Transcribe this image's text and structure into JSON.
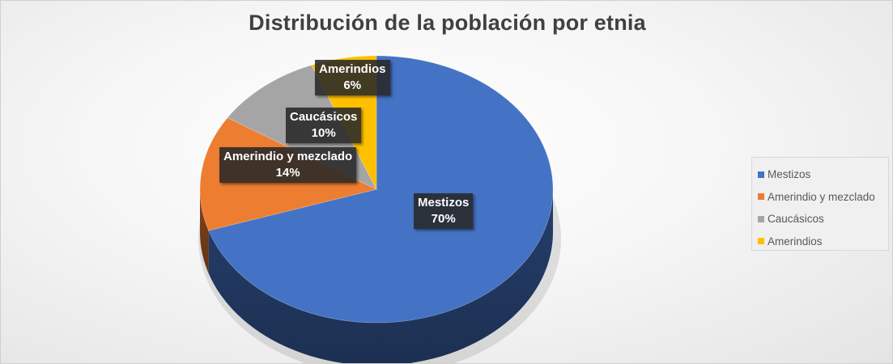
{
  "chart_data": {
    "type": "pie",
    "title": "Distribución de la población por etnia",
    "categories": [
      "Mestizos",
      "Amerindio y mezclado",
      "Caucásicos",
      "Amerindios"
    ],
    "values": [
      70,
      14,
      10,
      6
    ],
    "value_labels": [
      "70%",
      "14%",
      "10%",
      "6%"
    ],
    "colors": [
      "#4472C4",
      "#ED7D31",
      "#A5A5A5",
      "#FFC000"
    ],
    "style": "3d",
    "legend_position": "right",
    "start_angle_deg": 0,
    "direction": "clockwise"
  }
}
